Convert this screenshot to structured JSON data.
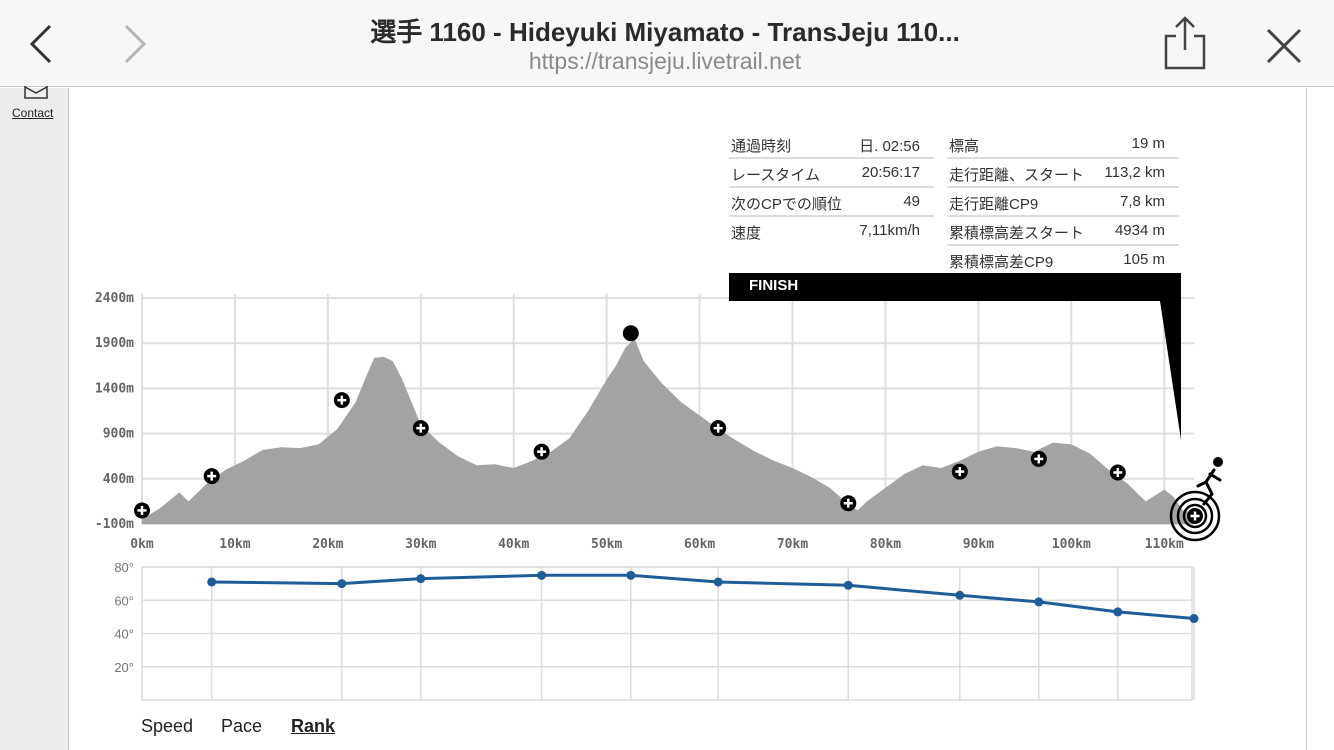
{
  "browser": {
    "title": "選手 1160 - Hideyuki Miyamato - TransJeju 110...",
    "url": "https://transjeju.livetrail.net"
  },
  "sidebar": {
    "contact_label": "Contact"
  },
  "info": {
    "left": [
      {
        "label": "通過時刻",
        "value": "日. 02:56"
      },
      {
        "label": "レースタイム",
        "value": "20:56:17"
      },
      {
        "label": "次のCPでの順位",
        "value": "49"
      },
      {
        "label": "速度",
        "value": "7,11km/h"
      }
    ],
    "right": [
      {
        "label": "標高",
        "value": "19 m"
      },
      {
        "label": "走行距離、スタート",
        "value": "113,2 km"
      },
      {
        "label": "走行距離CP9",
        "value": "7,8 km"
      },
      {
        "label": "累積標高差スタート",
        "value": "4934 m"
      },
      {
        "label": "累積標高差CP9",
        "value": "105 m"
      }
    ]
  },
  "finish_label": "FINISH",
  "tabs": {
    "speed": "Speed",
    "pace": "Pace",
    "rank": "Rank"
  },
  "chart_data": [
    {
      "type": "area",
      "xlabel": "",
      "ylabel": "",
      "x_ticks": [
        "0km",
        "10km",
        "20km",
        "30km",
        "40km",
        "50km",
        "60km",
        "70km",
        "80km",
        "90km",
        "100km",
        "110km"
      ],
      "y_ticks": [
        "2400m",
        "1900m",
        "1400m",
        "900m",
        "400m",
        "-100m"
      ],
      "xlim": [
        0,
        113.2
      ],
      "ylim": [
        -100,
        2400
      ],
      "profile": [
        [
          0,
          -50
        ],
        [
          2,
          80
        ],
        [
          4,
          250
        ],
        [
          5,
          150
        ],
        [
          7,
          350
        ],
        [
          9,
          500
        ],
        [
          11,
          600
        ],
        [
          13,
          720
        ],
        [
          15,
          750
        ],
        [
          17,
          740
        ],
        [
          19,
          780
        ],
        [
          21,
          950
        ],
        [
          22,
          1100
        ],
        [
          23,
          1250
        ],
        [
          24,
          1500
        ],
        [
          25,
          1740
        ],
        [
          26,
          1750
        ],
        [
          27,
          1700
        ],
        [
          28,
          1500
        ],
        [
          29,
          1250
        ],
        [
          30,
          1000
        ],
        [
          32,
          800
        ],
        [
          34,
          650
        ],
        [
          36,
          550
        ],
        [
          38,
          560
        ],
        [
          40,
          520
        ],
        [
          42,
          600
        ],
        [
          44,
          700
        ],
        [
          46,
          850
        ],
        [
          48,
          1150
        ],
        [
          50,
          1500
        ],
        [
          51,
          1650
        ],
        [
          52,
          1850
        ],
        [
          53,
          1950
        ],
        [
          54,
          1700
        ],
        [
          56,
          1450
        ],
        [
          58,
          1250
        ],
        [
          60,
          1100
        ],
        [
          62,
          950
        ],
        [
          64,
          820
        ],
        [
          66,
          700
        ],
        [
          68,
          600
        ],
        [
          70,
          520
        ],
        [
          72,
          420
        ],
        [
          74,
          300
        ],
        [
          76,
          120
        ],
        [
          77,
          50
        ],
        [
          78,
          150
        ],
        [
          80,
          300
        ],
        [
          82,
          450
        ],
        [
          84,
          550
        ],
        [
          86,
          520
        ],
        [
          88,
          600
        ],
        [
          90,
          700
        ],
        [
          92,
          760
        ],
        [
          94,
          740
        ],
        [
          96,
          700
        ],
        [
          98,
          800
        ],
        [
          100,
          780
        ],
        [
          102,
          680
        ],
        [
          104,
          500
        ],
        [
          106,
          350
        ],
        [
          108,
          150
        ],
        [
          110,
          280
        ],
        [
          111,
          200
        ],
        [
          112,
          50
        ],
        [
          113.2,
          19
        ]
      ],
      "checkpoints": [
        [
          0,
          50
        ],
        [
          7.5,
          430
        ],
        [
          21.5,
          1270
        ],
        [
          30,
          960
        ],
        [
          43,
          700
        ],
        [
          62,
          960
        ],
        [
          76,
          130
        ],
        [
          88,
          480
        ],
        [
          96.5,
          620
        ],
        [
          105,
          470
        ],
        [
          113.2,
          20
        ]
      ],
      "summit": [
        52.6,
        2010
      ]
    },
    {
      "type": "line",
      "x_ticks": [],
      "y_ticks": [
        "80°",
        "60°",
        "40°",
        "20°"
      ],
      "ylim": [
        0,
        80
      ],
      "series": [
        {
          "values": [
            71,
            70,
            73,
            75,
            75,
            71,
            69,
            63,
            59,
            53,
            49
          ]
        }
      ],
      "x_km": [
        7.5,
        21.5,
        30,
        43,
        52.6,
        62,
        76,
        88,
        96.5,
        105,
        113.2
      ]
    }
  ],
  "colors": {
    "profile_fill": "#a3a3a3",
    "rank_line": "#1f5d99",
    "finish": "#000000"
  },
  "icons": [
    "chevron-left-icon",
    "chevron-right-icon",
    "share-icon",
    "close-icon",
    "mail-icon",
    "checkpoint-plus-icon",
    "finish-target-icon",
    "runner-icon"
  ]
}
